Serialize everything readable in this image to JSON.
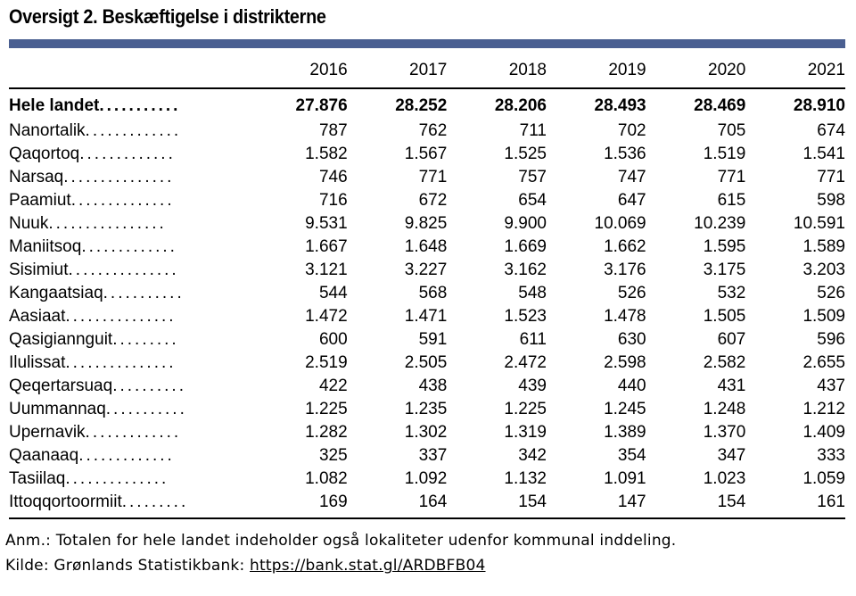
{
  "title": "Oversigt 2. Beskæftigelse i distrikterne",
  "years": [
    "2016",
    "2017",
    "2018",
    "2019",
    "2020",
    "2021"
  ],
  "total": {
    "name": "Hele landet",
    "dots": "...........",
    "values": [
      "27.876",
      "28.252",
      "28.206",
      "28.493",
      "28.469",
      "28.910"
    ]
  },
  "rows": [
    {
      "name": "Nanortalik",
      "dots": ".............",
      "values": [
        "787",
        "762",
        "711",
        "702",
        "705",
        "674"
      ]
    },
    {
      "name": "Qaqortoq",
      "dots": ".............",
      "values": [
        "1.582",
        "1.567",
        "1.525",
        "1.536",
        "1.519",
        "1.541"
      ]
    },
    {
      "name": "Narsaq",
      "dots": "...............",
      "values": [
        "746",
        "771",
        "757",
        "747",
        "771",
        "771"
      ]
    },
    {
      "name": "Paamiut",
      "dots": "..............",
      "values": [
        "716",
        "672",
        "654",
        "647",
        "615",
        "598"
      ]
    },
    {
      "name": "Nuuk",
      "dots": "................",
      "values": [
        "9.531",
        "9.825",
        "9.900",
        "10.069",
        "10.239",
        "10.591"
      ]
    },
    {
      "name": "Maniitsoq",
      "dots": ".............",
      "values": [
        "1.667",
        "1.648",
        "1.669",
        "1.662",
        "1.595",
        "1.589"
      ]
    },
    {
      "name": "Sisimiut",
      "dots": "...............",
      "values": [
        "3.121",
        "3.227",
        "3.162",
        "3.176",
        "3.175",
        "3.203"
      ]
    },
    {
      "name": "Kangaatsiaq",
      "dots": "...........",
      "values": [
        "544",
        "568",
        "548",
        "526",
        "532",
        "526"
      ]
    },
    {
      "name": "Aasiaat",
      "dots": "...............",
      "values": [
        "1.472",
        "1.471",
        "1.523",
        "1.478",
        "1.505",
        "1.509"
      ]
    },
    {
      "name": "Qasigiannguit",
      "dots": ".........",
      "values": [
        "600",
        "591",
        "611",
        "630",
        "607",
        "596"
      ]
    },
    {
      "name": "Ilulissat",
      "dots": "...............",
      "values": [
        "2.519",
        "2.505",
        "2.472",
        "2.598",
        "2.582",
        "2.655"
      ]
    },
    {
      "name": "Qeqertarsuaq",
      "dots": "..........",
      "values": [
        "422",
        "438",
        "439",
        "440",
        "431",
        "437"
      ]
    },
    {
      "name": "Uummannaq",
      "dots": "...........",
      "values": [
        "1.225",
        "1.235",
        "1.225",
        "1.245",
        "1.248",
        "1.212"
      ]
    },
    {
      "name": "Upernavik",
      "dots": ".............",
      "values": [
        "1.282",
        "1.302",
        "1.319",
        "1.389",
        "1.370",
        "1.409"
      ]
    },
    {
      "name": "Qaanaaq",
      "dots": ".............",
      "values": [
        "325",
        "337",
        "342",
        "354",
        "347",
        "333"
      ]
    },
    {
      "name": "Tasiilaq",
      "dots": "..............",
      "values": [
        "1.082",
        "1.092",
        "1.132",
        "1.091",
        "1.023",
        "1.059"
      ]
    },
    {
      "name": "Ittoqqortoormiit",
      "dots": ".........",
      "values": [
        "169",
        "164",
        "154",
        "147",
        "154",
        "161"
      ]
    }
  ],
  "note": "Anm.: Totalen for hele landet indeholder også lokaliteter udenfor kommunal inddeling.",
  "source_label": "Kilde: Grønlands Statistikbank: ",
  "source_link": "https://bank.stat.gl/ARDBFB04"
}
